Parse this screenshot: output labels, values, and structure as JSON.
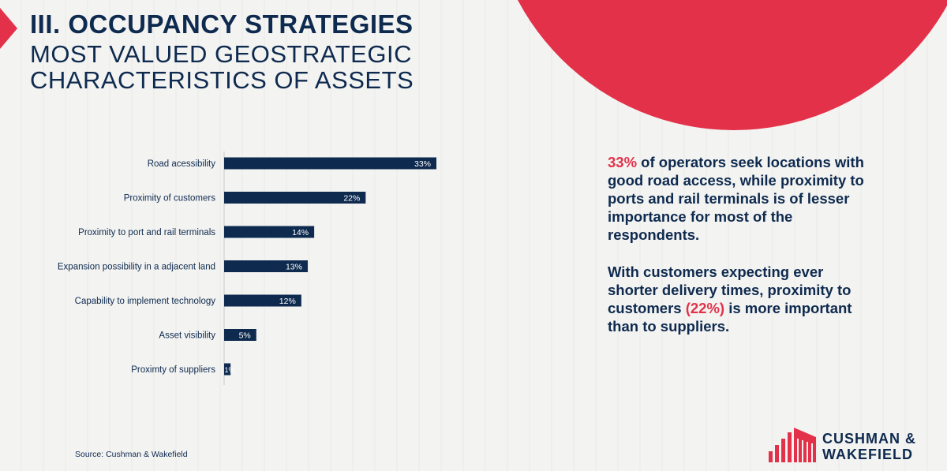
{
  "header": {
    "title": "III. OCCUPANCY STRATEGIES",
    "subtitle_line1": "MOST VALUED GEOSTRATEGIC",
    "subtitle_line2": "CHARACTERISTICS OF ASSETS"
  },
  "colors": {
    "accent": "#e3314a",
    "navy": "#0e2a4f"
  },
  "chart_data": {
    "type": "bar",
    "orientation": "horizontal",
    "categories": [
      "Road acessibility",
      "Proximity of customers",
      "Proximity to port and rail terminals",
      "Expansion possibility in a adjacent land",
      "Capability to implement technology",
      "Asset visibility",
      "Proximty of suppliers"
    ],
    "values": [
      33,
      22,
      14,
      13,
      12,
      5,
      1
    ],
    "value_labels": [
      "33%",
      "22%",
      "14%",
      "13%",
      "12%",
      "5%",
      "1%"
    ],
    "unit": "%",
    "xlim": [
      0,
      35
    ],
    "grid": false,
    "legend": "none"
  },
  "commentary": {
    "p1_highlight": "33%",
    "p1_text": " of operators seek locations with good road access, while proximity to ports and rail terminals is of lesser importance for most of the respondents.",
    "p2_text_a": "With customers expecting ever shorter delivery times, proximity to customers ",
    "p2_highlight": "(22%)",
    "p2_text_b": " is more important than to suppliers."
  },
  "footer": {
    "source": "Source: Cushman & Wakefield",
    "logo_line1": "CUSHMAN &",
    "logo_line2": "WAKEFIELD",
    "logo_icon": "cushman-wakefield-logo-icon"
  }
}
